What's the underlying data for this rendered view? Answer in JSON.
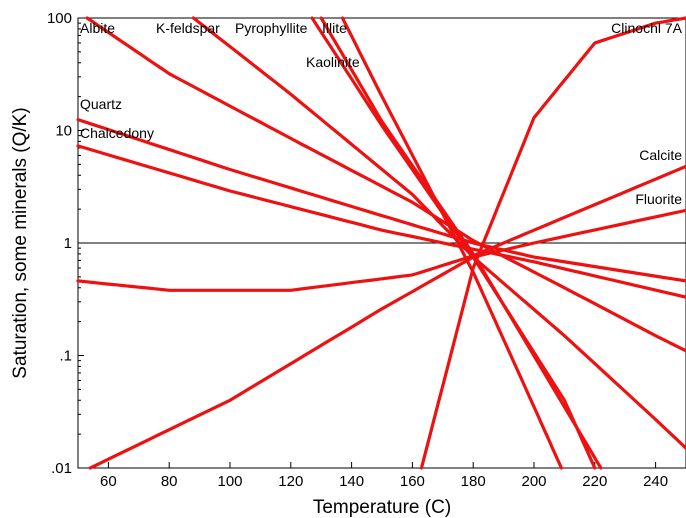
{
  "chart_data": {
    "type": "line",
    "title": "",
    "xlabel": "Temperature (C)",
    "ylabel": "Saturation, some minerals (Q/K)",
    "xlim": [
      50,
      250
    ],
    "ylim": [
      0.01,
      100
    ],
    "yscale": "log",
    "x_ticks": [
      60,
      80,
      100,
      120,
      140,
      160,
      180,
      200,
      220,
      240
    ],
    "x_tick_labels": [
      "60",
      "80",
      "100",
      "120",
      "140",
      "160",
      "180",
      "200",
      "220",
      "240"
    ],
    "y_ticks": [
      0.01,
      0.1,
      1,
      10,
      100
    ],
    "y_tick_labels": [
      ".01",
      ".1",
      "1",
      "10",
      "100"
    ],
    "reference_line": 1,
    "grid": false,
    "line_color": "#ee1111",
    "series": [
      {
        "name": "Albite",
        "x": [
          53,
          80,
          120,
          160,
          180,
          210,
          240,
          250
        ],
        "y": [
          100,
          32,
          8.5,
          2.3,
          1.05,
          0.4,
          0.15,
          0.11
        ]
      },
      {
        "name": "K-feldspar",
        "x": [
          88,
          120,
          160,
          180,
          210,
          240,
          250
        ],
        "y": [
          100,
          21,
          2.7,
          0.75,
          0.15,
          0.027,
          0.015
        ]
      },
      {
        "name": "Pyrophyllite",
        "x": [
          127,
          150,
          180,
          210,
          220
        ],
        "y": [
          100,
          11,
          0.75,
          0.04,
          0.01
        ]
      },
      {
        "name": "Illite",
        "x": [
          130,
          150,
          180,
          210,
          222
        ],
        "y": [
          100,
          12,
          0.8,
          0.035,
          0.01
        ]
      },
      {
        "name": "Kaolinite",
        "x": [
          137,
          150,
          180,
          200,
          209
        ],
        "y": [
          100,
          20,
          0.55,
          0.035,
          0.01
        ]
      },
      {
        "name": "Quartz",
        "x": [
          50,
          100,
          150,
          180,
          200,
          250
        ],
        "y": [
          12.5,
          4.5,
          1.75,
          1.0,
          0.75,
          0.46
        ]
      },
      {
        "name": "Chalcedony",
        "x": [
          50,
          100,
          150,
          180,
          200,
          250
        ],
        "y": [
          7.3,
          2.9,
          1.3,
          0.88,
          0.68,
          0.33
        ]
      },
      {
        "name": "Clinochl 7A",
        "x": [
          163,
          180,
          200,
          220,
          240,
          250
        ],
        "y": [
          0.01,
          0.6,
          13,
          60,
          90,
          100
        ]
      },
      {
        "name": "Calcite",
        "x": [
          50,
          80,
          120,
          160,
          180,
          200,
          250
        ],
        "y": [
          0.46,
          0.38,
          0.38,
          0.52,
          0.77,
          1.3,
          4.8
        ]
      },
      {
        "name": "Fluorite",
        "x": [
          54,
          100,
          150,
          180,
          200,
          250
        ],
        "y": [
          0.01,
          0.04,
          0.26,
          0.75,
          1.0,
          1.95
        ]
      }
    ],
    "labels": [
      {
        "series": "Albite",
        "text": "Albite"
      },
      {
        "series": "K-feldspar",
        "text": "K-feldspar"
      },
      {
        "series": "Pyrophyllite",
        "text": "Pyrophyllite"
      },
      {
        "series": "Illite",
        "text": "Illite"
      },
      {
        "series": "Kaolinite",
        "text": "Kaolinite"
      },
      {
        "series": "Quartz",
        "text": "Quartz"
      },
      {
        "series": "Chalcedony",
        "text": "Chalcedony"
      },
      {
        "series": "Clinochl 7A",
        "text": "Clinochl 7A"
      },
      {
        "series": "Calcite",
        "text": "Calcite"
      },
      {
        "series": "Fluorite",
        "text": "Fluorite"
      }
    ]
  }
}
